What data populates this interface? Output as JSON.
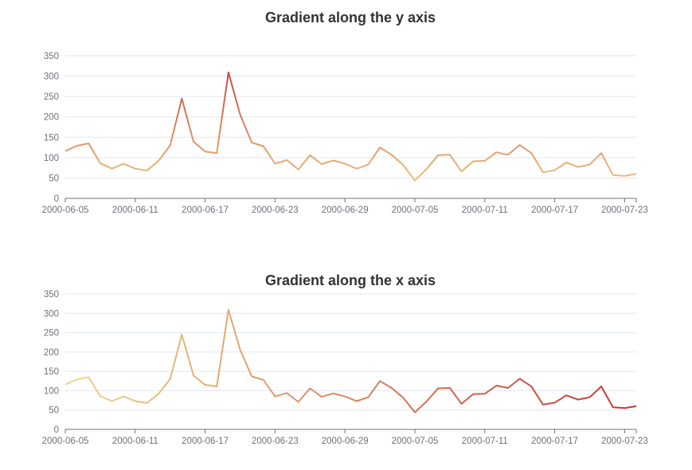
{
  "chart_data": [
    {
      "type": "line",
      "title": "Gradient along the y axis",
      "gradient": "y",
      "ylim": [
        0,
        350
      ],
      "yticks": [
        0,
        50,
        100,
        150,
        200,
        250,
        300,
        350
      ],
      "xtick_labels": [
        "2000-06-05",
        "2000-06-11",
        "2000-06-17",
        "2000-06-23",
        "2000-06-29",
        "2000-07-05",
        "2000-07-11",
        "2000-07-17",
        "2000-07-23"
      ],
      "grid": true,
      "colors": {
        "low": "#f2d48c",
        "high": "#c23531"
      }
    },
    {
      "type": "line",
      "title": "Gradient along the x axis",
      "gradient": "x",
      "ylim": [
        0,
        350
      ],
      "yticks": [
        0,
        50,
        100,
        150,
        200,
        250,
        300,
        350
      ],
      "xtick_labels": [
        "2000-06-05",
        "2000-06-11",
        "2000-06-17",
        "2000-06-23",
        "2000-06-29",
        "2000-07-05",
        "2000-07-11",
        "2000-07-17",
        "2000-07-23"
      ],
      "grid": true,
      "colors": {
        "low": "#f2d48c",
        "high": "#c23531"
      }
    }
  ],
  "series": {
    "x": [
      "2000-06-05",
      "2000-06-06",
      "2000-06-07",
      "2000-06-08",
      "2000-06-09",
      "2000-06-10",
      "2000-06-11",
      "2000-06-12",
      "2000-06-13",
      "2000-06-14",
      "2000-06-15",
      "2000-06-16",
      "2000-06-17",
      "2000-06-18",
      "2000-06-19",
      "2000-06-20",
      "2000-06-21",
      "2000-06-22",
      "2000-06-23",
      "2000-06-24",
      "2000-06-25",
      "2000-06-26",
      "2000-06-27",
      "2000-06-28",
      "2000-06-29",
      "2000-06-30",
      "2000-07-01",
      "2000-07-02",
      "2000-07-03",
      "2000-07-04",
      "2000-07-05",
      "2000-07-06",
      "2000-07-07",
      "2000-07-08",
      "2000-07-09",
      "2000-07-10",
      "2000-07-11",
      "2000-07-12",
      "2000-07-13",
      "2000-07-14",
      "2000-07-15",
      "2000-07-16",
      "2000-07-17",
      "2000-07-18",
      "2000-07-19",
      "2000-07-20",
      "2000-07-21",
      "2000-07-22",
      "2000-07-23",
      "2000-07-24"
    ],
    "values": [
      116,
      129,
      135,
      86,
      73,
      85,
      73,
      68,
      92,
      130,
      245,
      139,
      115,
      111,
      309,
      206,
      137,
      128,
      85,
      94,
      71,
      106,
      84,
      93,
      85,
      73,
      83,
      125,
      107,
      82,
      44,
      72,
      106,
      107,
      66,
      91,
      92,
      113,
      107,
      131,
      111,
      64,
      69,
      88,
      77,
      83,
      111,
      57,
      55,
      60
    ]
  }
}
